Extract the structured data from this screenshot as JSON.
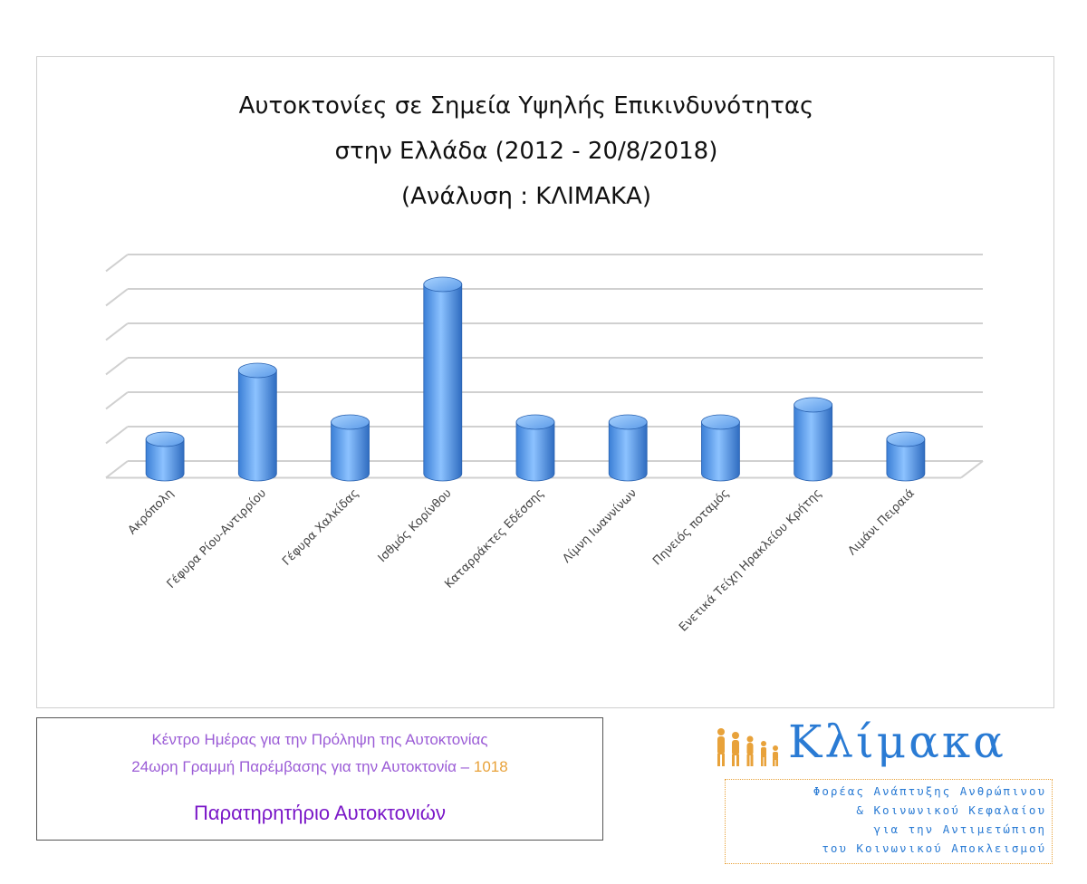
{
  "chart_data": {
    "type": "bar",
    "title_lines": [
      "Αυτοκτονίες σε Σημεία Υψηλής Επικινδυνότητας",
      "στην Ελλάδα (2012 - 20/8/2018)",
      "(Ανάλυση : ΚΛΙΜΑΚΑ)"
    ],
    "categories": [
      "Ακρόπολη",
      "Γέφυρα Ρίου-Αντιρρίου",
      "Γέφυρα Χαλκίδας",
      "Ισθμός Κορίνθου",
      "Καταρράκτες Εδέσσης",
      "Λίμνη Ιωαννίνων",
      "Πηνειός ποταμός",
      "Ενετικά Τείχη Ηρακλείου Κρήτης",
      "Λιμάνι Πειραιά"
    ],
    "values": [
      1,
      3,
      1.5,
      5.5,
      1.5,
      1.5,
      1.5,
      2,
      1
    ],
    "ylim": [
      0,
      6.5
    ],
    "gridlines": 7,
    "grid": true,
    "legend": "none",
    "style": "3d-cylinder",
    "bar_color": "#4a90e2"
  },
  "info_box": {
    "line1": "Κέντρο Ημέρας για την Πρόληψη της Αυτοκτονίας",
    "line2": "24ωρη Γραμμή Παρέμβασης για την Αυτοκτονία –",
    "hotline": "1018",
    "subtitle": "Παρατηρητήριο Αυτοκτονιών"
  },
  "logo": {
    "name": "Κλίμακα",
    "description_lines": [
      "Φορέας Ανάπτυξης Ανθρώπινου",
      "& Κοινωνικού Κεφαλαίου",
      "για την Αντιμετώπιση",
      "του Κοινωνικού Αποκλεισμού"
    ],
    "brand_color": "#2a7bd4",
    "accent_color": "#e8a23a"
  }
}
